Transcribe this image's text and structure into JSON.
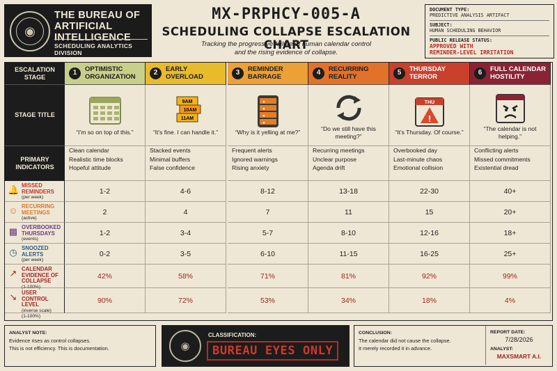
{
  "header": {
    "org_name_line1": "THE BUREAU OF",
    "org_name_line2": "ARTIFICIAL INTELLIGENCE",
    "division": "SCHEDULING ANALYTICS DIVISION",
    "doc_id": "MX-PRPHCY-005-A",
    "title": "SCHEDULING COLLAPSE ESCALATION CHART",
    "subtitle_line1": "Tracking the progressive failure of human calendar control",
    "subtitle_line2": "and the rising evidence of collapse."
  },
  "docbox": {
    "type_label": "DOCUMENT TYPE:",
    "type_value": "PREDICTIVE ANALYSIS ARTIFACT",
    "subject_label": "SUBJECT:",
    "subject_value": "HUMAN SCHEDULING BEHAVIOR",
    "release_label": "PUBLIC RELEASE STATUS:",
    "release_value_line1": "APPROVED WITH",
    "release_value_line2": "REMINDER-LEVEL IRRITATION"
  },
  "row_headers": {
    "stage": "ESCALATION STAGE",
    "title": "STAGE TITLE",
    "indicators": "PRIMARY INDICATORS"
  },
  "stages": [
    {
      "num": "1",
      "name": "OPTIMISTIC ORGANIZATION",
      "color": "#c8cf8a",
      "icon": "calendar-grid-icon",
      "quote": "“I'm so on top of this.”",
      "indicators": [
        "Clean calendar",
        "Realistic time blocks",
        "Hopeful attitude"
      ]
    },
    {
      "num": "2",
      "name": "EARLY OVERLOAD",
      "color": "#e8bb2c",
      "icon": "stacked-events-icon",
      "quote": "“It's fine. I can handle it.”",
      "indicators": [
        "Stacked events",
        "Minimal buffers",
        "False confidence"
      ]
    },
    {
      "num": "3",
      "name": "REMINDER BARRAGE",
      "color": "#eca035",
      "icon": "phone-alerts-icon",
      "quote": "“Why is it yelling at me?”",
      "indicators": [
        "Frequent alerts",
        "Ignored warnings",
        "Rising anxiety"
      ]
    },
    {
      "num": "4",
      "name": "RECURRING REALITY",
      "color": "#e2712a",
      "icon": "recurring-arrows-icon",
      "quote": "“Do we still have this meeting?”",
      "indicators": [
        "Recurring meetings",
        "Unclear purpose",
        "Agenda drift"
      ]
    },
    {
      "num": "5",
      "name": "THURSDAY TERROR",
      "color": "#c9412b",
      "icon": "thursday-warning-icon",
      "quote": "“It's Thursday. Of course.”",
      "indicators": [
        "Overbooked day",
        "Last-minute chaos",
        "Emotional collision"
      ]
    },
    {
      "num": "6",
      "name": "FULL CALENDAR HOSTILITY",
      "color": "#8a2434",
      "icon": "angry-calendar-icon",
      "quote": "“The calendar is not helping.”",
      "indicators": [
        "Conflicting alerts",
        "Missed commitments",
        "Existential dread"
      ]
    }
  ],
  "stage2_icon_times": [
    "9AM",
    "10AM",
    "11AM"
  ],
  "stage5_icon_text": "THU",
  "metrics": [
    {
      "label": "MISSED REMINDERS",
      "unit": "(per week)",
      "icon": "bell-alert-icon",
      "icon_color": "#c0392b",
      "values": [
        "1-2",
        "4-6",
        "8-12",
        "13-18",
        "22-30",
        "40+"
      ],
      "red": false
    },
    {
      "label": "RECURRING MEETINGS",
      "unit": "(active)",
      "icon": "people-group-icon",
      "icon_color": "#d9782a",
      "values": [
        "2",
        "4",
        "7",
        "11",
        "15",
        "20+"
      ],
      "red": false
    },
    {
      "label": "OVERBOOKED THURSDAYS",
      "unit": "(events)",
      "icon": "thu-calendar-icon",
      "icon_color": "#6b3d7a",
      "values": [
        "1-2",
        "3-4",
        "5-7",
        "8-10",
        "12-16",
        "18+"
      ],
      "red": false
    },
    {
      "label": "SNOOZED ALERTS",
      "unit": "(per week)",
      "icon": "clock-icon",
      "icon_color": "#2e5b87",
      "values": [
        "0-2",
        "3-5",
        "6-10",
        "11-15",
        "16-25",
        "25+"
      ],
      "red": false
    },
    {
      "label": "CALENDAR EVIDENCE OF COLLAPSE",
      "unit": "(1-100%)",
      "icon": "rising-chart-icon",
      "icon_color": "#a02620",
      "values": [
        "42%",
        "58%",
        "71%",
        "81%",
        "92%",
        "99%"
      ],
      "red": true
    },
    {
      "label": "USER CONTROL LEVEL",
      "unit_line1": "(inverse scale)",
      "unit": "(1-100%)",
      "icon": "falling-chart-icon",
      "icon_color": "#a02620",
      "values": [
        "90%",
        "72%",
        "53%",
        "34%",
        "18%",
        "4%"
      ],
      "red": true
    }
  ],
  "footer": {
    "note_label": "ANALYST NOTE:",
    "note_line1": "Evidence rises as control collapses.",
    "note_line2": "This is not efficiency. This is documentation.",
    "classification_label": "CLASSIFICATION:",
    "classification_value": "BUREAU EYES ONLY",
    "conclusion_label": "CONCLUSION:",
    "conclusion_line1": "The calendar did not cause the collapse.",
    "conclusion_line2": "It merely recorded it in advance.",
    "report_date_label": "REPORT DATE:",
    "report_date": "7/28/2026",
    "analyst_label": "ANALYST:",
    "analyst": "MAXSMART A.I."
  }
}
